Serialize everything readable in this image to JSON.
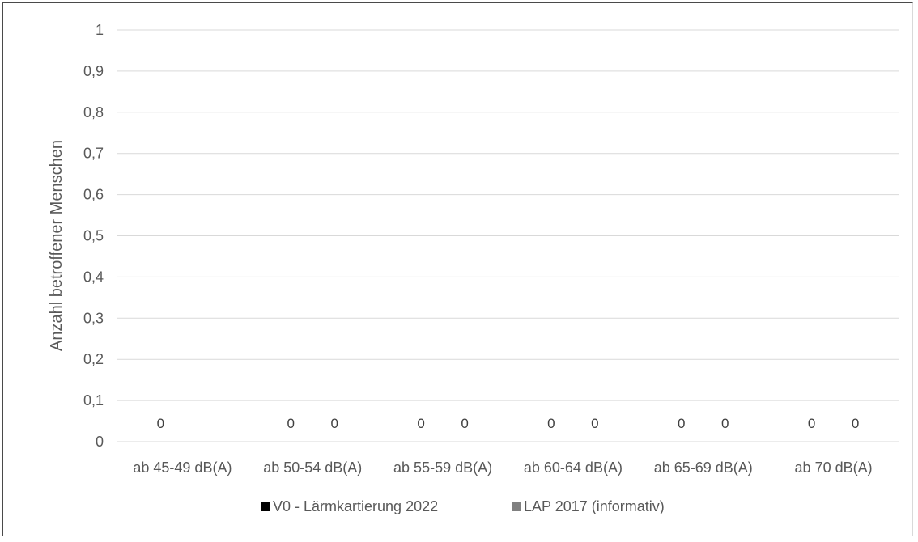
{
  "chart_data": {
    "type": "bar",
    "ylabel": "Anzahl betroffener Menschen",
    "xlabel": "",
    "ylim": [
      0,
      1
    ],
    "yticks": [
      "0",
      "0,1",
      "0,2",
      "0,3",
      "0,4",
      "0,5",
      "0,6",
      "0,7",
      "0,8",
      "0,9",
      "1"
    ],
    "categories": [
      "ab 45-49 dB(A)",
      "ab 50-54 dB(A)",
      "ab 55-59 dB(A)",
      "ab 60-64 dB(A)",
      "ab 65-69 dB(A)",
      "ab 70 dB(A)"
    ],
    "series": [
      {
        "name": "V0 - Lärmkartierung 2022",
        "color": "#000000",
        "values": [
          0,
          0,
          0,
          0,
          0,
          0
        ],
        "labels": [
          "0",
          "0",
          "0",
          "0",
          "0",
          "0"
        ]
      },
      {
        "name": "LAP 2017 (informativ)",
        "color": "#808080",
        "values": [
          null,
          0,
          0,
          0,
          0,
          0
        ],
        "labels": [
          "",
          "0",
          "0",
          "0",
          "0",
          "0"
        ]
      }
    ],
    "grid": true,
    "legend": "bottom"
  }
}
